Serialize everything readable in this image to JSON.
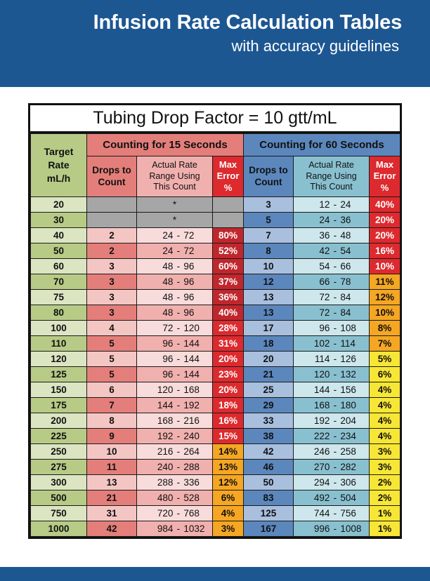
{
  "header": {
    "title": "Infusion Rate Calculation Tables",
    "subtitle": "with accuracy guidelines"
  },
  "table": {
    "title": "Tubing Drop Factor = 10 gtt/mL",
    "col_target": [
      "Target",
      "Rate",
      "mL/h"
    ],
    "col_group_15": "Counting for 15 Seconds",
    "col_group_60": "Counting for 60 Seconds",
    "sub_drops": [
      "Drops to",
      "Count"
    ],
    "sub_range": [
      "Actual Rate",
      "Range Using",
      "This Count"
    ],
    "sub_error": [
      "Max",
      "Error",
      "%"
    ],
    "rows": [
      {
        "rate": "20",
        "d15": "",
        "r15": "*",
        "e15": "",
        "c15": "#a6a6a6",
        "d60": "3",
        "r60": [
          "12",
          "24"
        ],
        "e60": "40%",
        "c60": "#dd2a2e"
      },
      {
        "rate": "30",
        "d15": "",
        "r15": "*",
        "e15": "",
        "c15": "#a6a6a6",
        "d60": "5",
        "r60": [
          "24",
          "36"
        ],
        "e60": "20%",
        "c60": "#dd2a2e"
      },
      {
        "rate": "40",
        "d15": "2",
        "r15": [
          "24",
          "72"
        ],
        "e15": "80%",
        "c15": "#c0272d",
        "d60": "7",
        "r60": [
          "36",
          "48"
        ],
        "e60": "20%",
        "c60": "#dd2a2e"
      },
      {
        "rate": "50",
        "d15": "2",
        "r15": [
          "24",
          "72"
        ],
        "e15": "52%",
        "c15": "#c0272d",
        "d60": "8",
        "r60": [
          "42",
          "54"
        ],
        "e60": "16%",
        "c60": "#dd2a2e"
      },
      {
        "rate": "60",
        "d15": "3",
        "r15": [
          "48",
          "96"
        ],
        "e15": "60%",
        "c15": "#c0272d",
        "d60": "10",
        "r60": [
          "54",
          "66"
        ],
        "e60": "10%",
        "c60": "#dd2a2e"
      },
      {
        "rate": "70",
        "d15": "3",
        "r15": [
          "48",
          "96"
        ],
        "e15": "37%",
        "c15": "#c0272d",
        "d60": "12",
        "r60": [
          "66",
          "78"
        ],
        "e60": "11%",
        "c60": "#f5a623"
      },
      {
        "rate": "75",
        "d15": "3",
        "r15": [
          "48",
          "96"
        ],
        "e15": "36%",
        "c15": "#c0272d",
        "d60": "13",
        "r60": [
          "72",
          "84"
        ],
        "e60": "12%",
        "c60": "#f5a623"
      },
      {
        "rate": "80",
        "d15": "3",
        "r15": [
          "48",
          "96"
        ],
        "e15": "40%",
        "c15": "#c0272d",
        "d60": "13",
        "r60": [
          "72",
          "84"
        ],
        "e60": "10%",
        "c60": "#f5a623"
      },
      {
        "rate": "100",
        "d15": "4",
        "r15": [
          "72",
          "120"
        ],
        "e15": "28%",
        "c15": "#dd2a2e",
        "d60": "17",
        "r60": [
          "96",
          "108"
        ],
        "e60": "8%",
        "c60": "#f5a623"
      },
      {
        "rate": "110",
        "d15": "5",
        "r15": [
          "96",
          "144"
        ],
        "e15": "31%",
        "c15": "#dd2a2e",
        "d60": "18",
        "r60": [
          "102",
          "114"
        ],
        "e60": "7%",
        "c60": "#f5a623"
      },
      {
        "rate": "120",
        "d15": "5",
        "r15": [
          "96",
          "144"
        ],
        "e15": "20%",
        "c15": "#dd2a2e",
        "d60": "20",
        "r60": [
          "114",
          "126"
        ],
        "e60": "5%",
        "c60": "#f7e635"
      },
      {
        "rate": "125",
        "d15": "5",
        "r15": [
          "96",
          "144"
        ],
        "e15": "23%",
        "c15": "#dd2a2e",
        "d60": "21",
        "r60": [
          "120",
          "132"
        ],
        "e60": "6%",
        "c60": "#f7e635"
      },
      {
        "rate": "150",
        "d15": "6",
        "r15": [
          "120",
          "168"
        ],
        "e15": "20%",
        "c15": "#dd2a2e",
        "d60": "25",
        "r60": [
          "144",
          "156"
        ],
        "e60": "4%",
        "c60": "#f7e635"
      },
      {
        "rate": "175",
        "d15": "7",
        "r15": [
          "144",
          "192"
        ],
        "e15": "18%",
        "c15": "#dd2a2e",
        "d60": "29",
        "r60": [
          "168",
          "180"
        ],
        "e60": "4%",
        "c60": "#f7e635"
      },
      {
        "rate": "200",
        "d15": "8",
        "r15": [
          "168",
          "216"
        ],
        "e15": "16%",
        "c15": "#dd2a2e",
        "d60": "33",
        "r60": [
          "192",
          "204"
        ],
        "e60": "4%",
        "c60": "#f7e635"
      },
      {
        "rate": "225",
        "d15": "9",
        "r15": [
          "192",
          "240"
        ],
        "e15": "15%",
        "c15": "#dd2a2e",
        "d60": "38",
        "r60": [
          "222",
          "234"
        ],
        "e60": "4%",
        "c60": "#f7e635"
      },
      {
        "rate": "250",
        "d15": "10",
        "r15": [
          "216",
          "264"
        ],
        "e15": "14%",
        "c15": "#f5a623",
        "d60": "42",
        "r60": [
          "246",
          "258"
        ],
        "e60": "3%",
        "c60": "#f7e635"
      },
      {
        "rate": "275",
        "d15": "11",
        "r15": [
          "240",
          "288"
        ],
        "e15": "13%",
        "c15": "#f5a623",
        "d60": "46",
        "r60": [
          "270",
          "282"
        ],
        "e60": "3%",
        "c60": "#f7e635"
      },
      {
        "rate": "300",
        "d15": "13",
        "r15": [
          "288",
          "336"
        ],
        "e15": "12%",
        "c15": "#f5a623",
        "d60": "50",
        "r60": [
          "294",
          "306"
        ],
        "e60": "2%",
        "c60": "#f7e635"
      },
      {
        "rate": "500",
        "d15": "21",
        "r15": [
          "480",
          "528"
        ],
        "e15": "6%",
        "c15": "#f5a623",
        "d60": "83",
        "r60": [
          "492",
          "504"
        ],
        "e60": "2%",
        "c60": "#f7e635"
      },
      {
        "rate": "750",
        "d15": "31",
        "r15": [
          "720",
          "768"
        ],
        "e15": "4%",
        "c15": "#f5a623",
        "d60": "125",
        "r60": [
          "744",
          "756"
        ],
        "e60": "1%",
        "c60": "#f7e635"
      },
      {
        "rate": "1000",
        "d15": "42",
        "r15": [
          "984",
          "1032"
        ],
        "e15": "3%",
        "c15": "#f5a623",
        "d60": "167",
        "r60": [
          "996",
          "1008"
        ],
        "e60": "1%",
        "c60": "#f7e635"
      }
    ]
  }
}
